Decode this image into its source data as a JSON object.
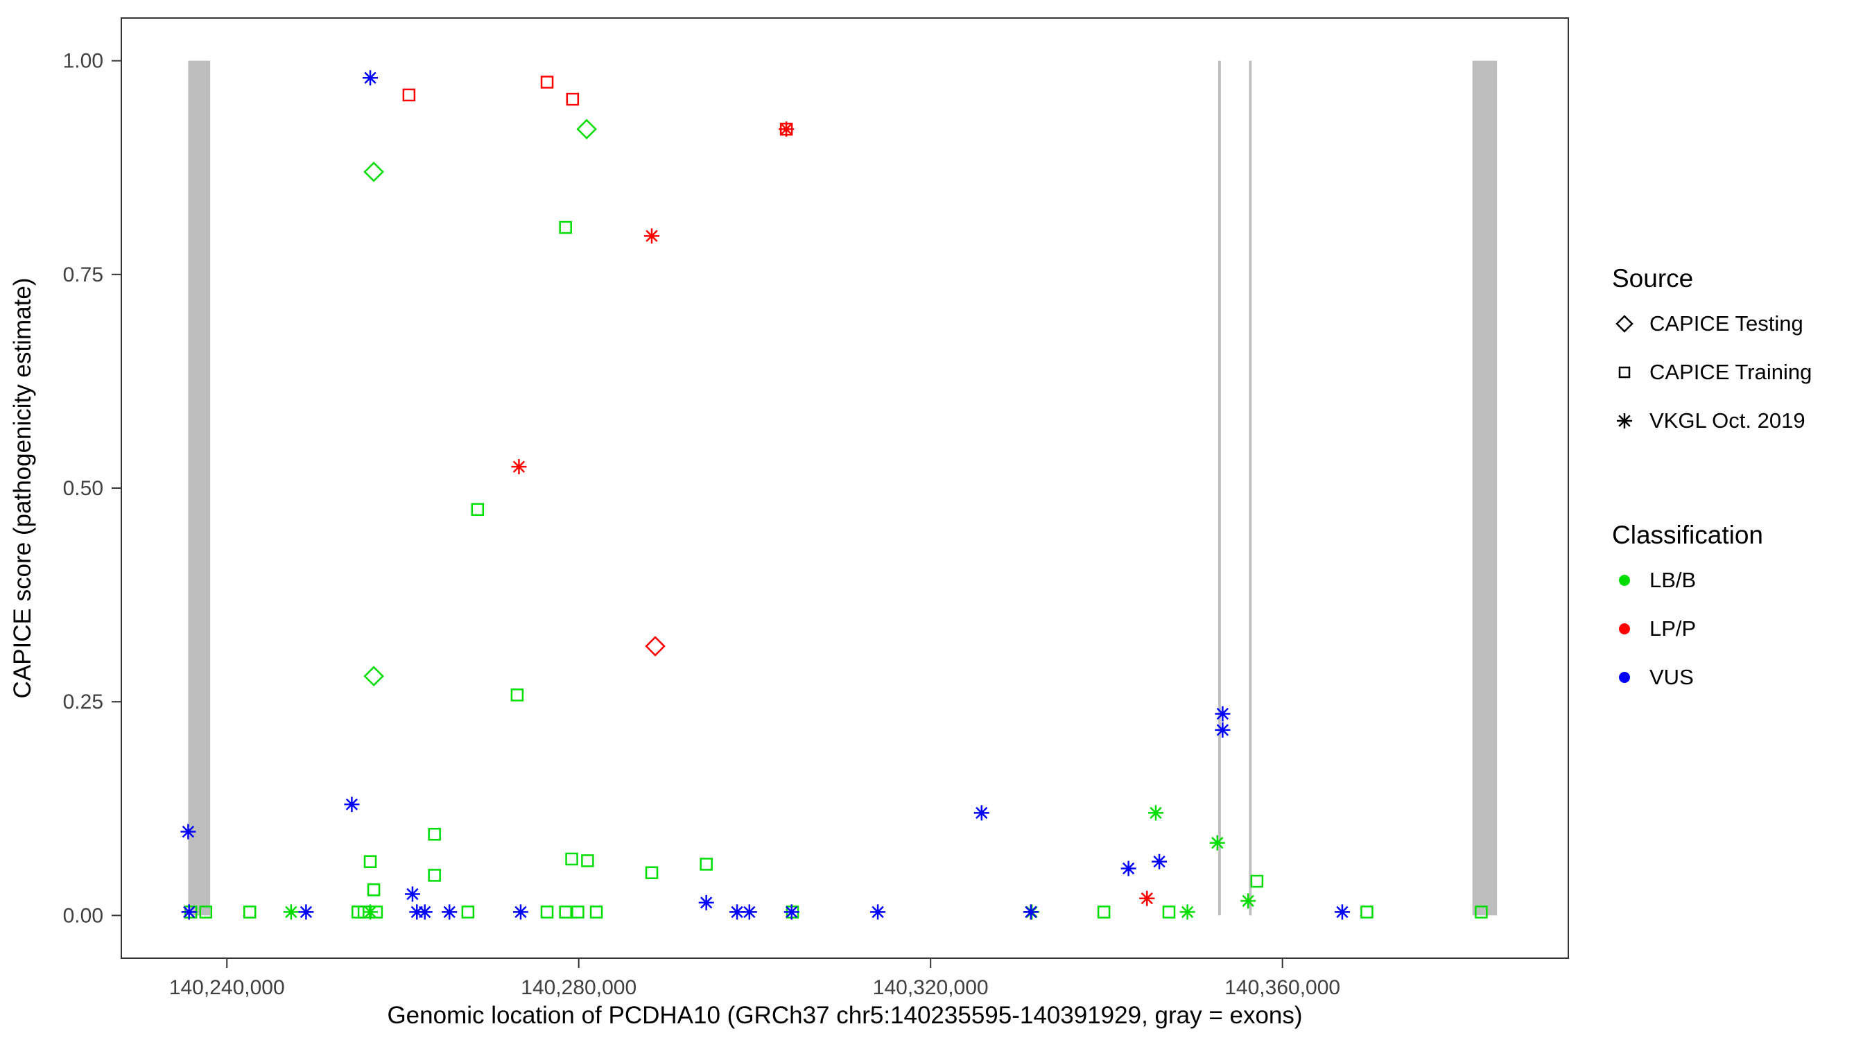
{
  "legend": {
    "source": {
      "title": "Source",
      "items": [
        {
          "label": "CAPICE Testing",
          "shape": "diamond-open"
        },
        {
          "label": "CAPICE Training",
          "shape": "square-open"
        },
        {
          "label": "VKGL Oct. 2019",
          "shape": "asterisk"
        }
      ]
    },
    "classification": {
      "title": "Classification",
      "items": [
        {
          "label": "LB/B",
          "color": "#00dd00"
        },
        {
          "label": "LP/P",
          "color": "#ff0000"
        },
        {
          "label": "VUS",
          "color": "#0000ff"
        }
      ]
    }
  },
  "chart_data": {
    "type": "scatter",
    "title": "",
    "xlabel": "Genomic location of PCDHA10 (GRCh37 chr5:140235595-140391929, gray = exons)",
    "ylabel": "CAPICE score (pathogenicity estimate)",
    "x_domain": [
      140228000,
      140392500
    ],
    "y_domain": [
      -0.05,
      1.05
    ],
    "x_ticks": [
      {
        "value": 140240000,
        "label": "140,240,000"
      },
      {
        "value": 140280000,
        "label": "140,280,000"
      },
      {
        "value": 140320000,
        "label": "140,320,000"
      },
      {
        "value": 140360000,
        "label": "140,360,000"
      }
    ],
    "y_ticks": [
      {
        "value": 0.0,
        "label": "0.00"
      },
      {
        "value": 0.25,
        "label": "0.25"
      },
      {
        "value": 0.5,
        "label": "0.50"
      },
      {
        "value": 0.75,
        "label": "0.75"
      },
      {
        "value": 1.0,
        "label": "1.00"
      }
    ],
    "grid": false,
    "legend_position": "right",
    "exon_color": "#bdbdbd",
    "class_colors": {
      "LB/B": "#00dd00",
      "LP/P": "#ff0000",
      "VUS": "#0000ff"
    },
    "source_shapes": {
      "testing": "diamond-open",
      "training": "square-open",
      "vkgl": "asterisk"
    },
    "exons": [
      {
        "start": 140235595,
        "end": 140238100
      },
      {
        "start": 140352700,
        "end": 140353000
      },
      {
        "start": 140356200,
        "end": 140356500
      },
      {
        "start": 140381600,
        "end": 140384400
      }
    ],
    "point_fields": [
      "genomic_position",
      "capice_score",
      "classification",
      "source"
    ],
    "points": [
      [
        140260700,
        0.96,
        "LP/P",
        "training"
      ],
      [
        140276400,
        0.975,
        "LP/P",
        "training"
      ],
      [
        140279300,
        0.955,
        "LP/P",
        "training"
      ],
      [
        140303600,
        0.92,
        "LP/P",
        "training"
      ],
      [
        140303600,
        0.92,
        "LP/P",
        "vkgl"
      ],
      [
        140288300,
        0.795,
        "LP/P",
        "vkgl"
      ],
      [
        140273200,
        0.525,
        "LP/P",
        "vkgl"
      ],
      [
        140288700,
        0.315,
        "LP/P",
        "testing"
      ],
      [
        140344600,
        0.02,
        "LP/P",
        "vkgl"
      ],
      [
        140280900,
        0.92,
        "LB/B",
        "testing"
      ],
      [
        140256700,
        0.87,
        "LB/B",
        "testing"
      ],
      [
        140256700,
        0.28,
        "LB/B",
        "testing"
      ],
      [
        140278500,
        0.805,
        "LB/B",
        "training"
      ],
      [
        140268500,
        0.475,
        "LB/B",
        "training"
      ],
      [
        140273000,
        0.258,
        "LB/B",
        "training"
      ],
      [
        140263600,
        0.095,
        "LB/B",
        "training"
      ],
      [
        140256300,
        0.063,
        "LB/B",
        "training"
      ],
      [
        140279200,
        0.066,
        "LB/B",
        "training"
      ],
      [
        140281000,
        0.064,
        "LB/B",
        "training"
      ],
      [
        140294500,
        0.06,
        "LB/B",
        "training"
      ],
      [
        140288300,
        0.05,
        "LB/B",
        "training"
      ],
      [
        140263600,
        0.047,
        "LB/B",
        "training"
      ],
      [
        140357100,
        0.04,
        "LB/B",
        "training"
      ],
      [
        140256700,
        0.03,
        "LB/B",
        "training"
      ],
      [
        140345600,
        0.12,
        "LB/B",
        "vkgl"
      ],
      [
        140352600,
        0.085,
        "LB/B",
        "vkgl"
      ],
      [
        140356100,
        0.017,
        "LB/B",
        "vkgl"
      ],
      [
        140235900,
        0.004,
        "LB/B",
        "training"
      ],
      [
        140237600,
        0.004,
        "LB/B",
        "training"
      ],
      [
        140242600,
        0.004,
        "LB/B",
        "training"
      ],
      [
        140247300,
        0.004,
        "LB/B",
        "vkgl"
      ],
      [
        140254900,
        0.004,
        "LB/B",
        "training"
      ],
      [
        140255600,
        0.004,
        "LB/B",
        "training"
      ],
      [
        140256300,
        0.004,
        "LB/B",
        "vkgl"
      ],
      [
        140257000,
        0.004,
        "LB/B",
        "training"
      ],
      [
        140267400,
        0.004,
        "LB/B",
        "training"
      ],
      [
        140276400,
        0.004,
        "LB/B",
        "training"
      ],
      [
        140278500,
        0.004,
        "LB/B",
        "training"
      ],
      [
        140279900,
        0.004,
        "LB/B",
        "training"
      ],
      [
        140282000,
        0.004,
        "LB/B",
        "training"
      ],
      [
        140304300,
        0.004,
        "LB/B",
        "training"
      ],
      [
        140331500,
        0.004,
        "LB/B",
        "vkgl"
      ],
      [
        140339700,
        0.004,
        "LB/B",
        "training"
      ],
      [
        140347100,
        0.004,
        "LB/B",
        "training"
      ],
      [
        140349200,
        0.004,
        "LB/B",
        "vkgl"
      ],
      [
        140369600,
        0.004,
        "LB/B",
        "training"
      ],
      [
        140382600,
        0.004,
        "LB/B",
        "training"
      ],
      [
        140256300,
        0.98,
        "VUS",
        "vkgl"
      ],
      [
        140353200,
        0.236,
        "VUS",
        "vkgl"
      ],
      [
        140353200,
        0.217,
        "VUS",
        "vkgl"
      ],
      [
        140254200,
        0.13,
        "VUS",
        "vkgl"
      ],
      [
        140325800,
        0.12,
        "VUS",
        "vkgl"
      ],
      [
        140235600,
        0.098,
        "VUS",
        "vkgl"
      ],
      [
        140342500,
        0.055,
        "VUS",
        "vkgl"
      ],
      [
        140346000,
        0.063,
        "VUS",
        "vkgl"
      ],
      [
        140261100,
        0.025,
        "VUS",
        "vkgl"
      ],
      [
        140294500,
        0.015,
        "VUS",
        "vkgl"
      ],
      [
        140235700,
        0.004,
        "VUS",
        "vkgl"
      ],
      [
        140249000,
        0.004,
        "VUS",
        "vkgl"
      ],
      [
        140261600,
        0.004,
        "VUS",
        "vkgl"
      ],
      [
        140262500,
        0.004,
        "VUS",
        "vkgl"
      ],
      [
        140265300,
        0.004,
        "VUS",
        "vkgl"
      ],
      [
        140273400,
        0.004,
        "VUS",
        "vkgl"
      ],
      [
        140298000,
        0.004,
        "VUS",
        "vkgl"
      ],
      [
        140299400,
        0.004,
        "VUS",
        "vkgl"
      ],
      [
        140304200,
        0.004,
        "VUS",
        "vkgl"
      ],
      [
        140314000,
        0.004,
        "VUS",
        "vkgl"
      ],
      [
        140331400,
        0.004,
        "VUS",
        "vkgl"
      ],
      [
        140366800,
        0.004,
        "VUS",
        "vkgl"
      ]
    ]
  }
}
